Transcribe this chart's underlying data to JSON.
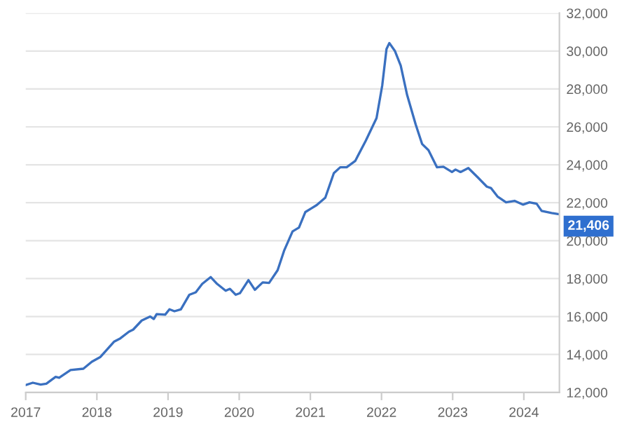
{
  "chart_data": {
    "type": "line",
    "x": [
      2017.0,
      2017.1,
      2017.21,
      2017.29,
      2017.42,
      2017.47,
      2017.63,
      2017.81,
      2017.93,
      2018.05,
      2018.24,
      2018.33,
      2018.45,
      2018.51,
      2018.63,
      2018.75,
      2018.8,
      2018.84,
      2018.96,
      2019.02,
      2019.09,
      2019.18,
      2019.3,
      2019.39,
      2019.48,
      2019.6,
      2019.69,
      2019.81,
      2019.87,
      2019.95,
      2020.01,
      2020.13,
      2020.22,
      2020.33,
      2020.42,
      2020.54,
      2020.63,
      2020.75,
      2020.84,
      2020.93,
      2021.02,
      2021.09,
      2021.21,
      2021.33,
      2021.42,
      2021.51,
      2021.63,
      2021.78,
      2021.93,
      2022.01,
      2022.07,
      2022.11,
      2022.19,
      2022.27,
      2022.36,
      2022.48,
      2022.57,
      2022.66,
      2022.78,
      2022.87,
      2022.99,
      2023.04,
      2023.11,
      2023.22,
      2023.36,
      2023.48,
      2023.54,
      2023.63,
      2023.75,
      2023.87,
      2023.99,
      2024.08,
      2024.18,
      2024.25,
      2024.39,
      2024.48
    ],
    "series": [
      {
        "color": "#3a70c0",
        "values": [
          12390,
          12510,
          12410,
          12460,
          12820,
          12770,
          13180,
          13250,
          13620,
          13870,
          14670,
          14850,
          15200,
          15310,
          15790,
          16000,
          15870,
          16130,
          16100,
          16380,
          16280,
          16380,
          17150,
          17280,
          17720,
          18080,
          17720,
          17360,
          17460,
          17150,
          17230,
          17920,
          17410,
          17800,
          17770,
          18440,
          19460,
          20490,
          20690,
          21510,
          21720,
          21880,
          22270,
          23560,
          23870,
          23870,
          24200,
          25280,
          26460,
          28180,
          30100,
          30420,
          29990,
          29230,
          27680,
          26130,
          25100,
          24770,
          23870,
          23900,
          23620,
          23750,
          23620,
          23830,
          23310,
          22850,
          22770,
          22330,
          22020,
          22100,
          21900,
          22020,
          21950,
          21570,
          21460,
          21406
        ]
      }
    ],
    "xlim": [
      2017.0,
      2024.5
    ],
    "xticks": [
      2017,
      2018,
      2019,
      2020,
      2021,
      2022,
      2023,
      2024
    ],
    "ylim": [
      12000,
      32000
    ],
    "yticks": [
      {
        "value": 12000,
        "label": "12,000"
      },
      {
        "value": 14000,
        "label": "14,000"
      },
      {
        "value": 16000,
        "label": "16,000"
      },
      {
        "value": 18000,
        "label": "18,000"
      },
      {
        "value": 20000,
        "label": "20,000"
      },
      {
        "value": 22000,
        "label": "22,000"
      },
      {
        "value": 24000,
        "label": "24,000"
      },
      {
        "value": 26000,
        "label": "26,000"
      },
      {
        "value": 28000,
        "label": "28,000"
      },
      {
        "value": 30000,
        "label": "30,000"
      },
      {
        "value": 32000,
        "label": "32,000"
      }
    ],
    "grid": "y",
    "annotations": [
      {
        "text": "21,406",
        "x": 2024.48,
        "y": 21406
      }
    ]
  }
}
